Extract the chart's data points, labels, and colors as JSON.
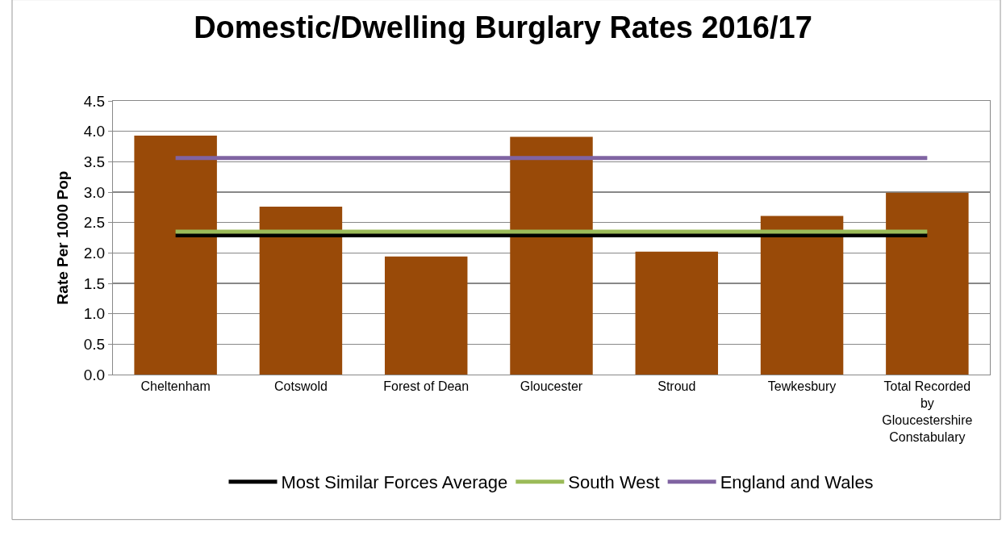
{
  "chart_data": {
    "type": "bar",
    "title": "Domestic/Dwelling Burglary Rates 2016/17",
    "ylabel": "Rate Per 1000 Pop",
    "categories": [
      "Cheltenham",
      "Cotswold",
      "Forest of Dean",
      "Gloucester",
      "Stroud",
      "Tewkesbury",
      "Total Recorded by Gloucestershire Constabulary"
    ],
    "series": [
      {
        "color": "#994a08",
        "values": [
          3.93,
          2.76,
          1.94,
          3.91,
          2.02,
          2.61,
          2.99
        ]
      },
      {
        "type": "line",
        "name": "Most Similar Forces Average",
        "color": "#000000",
        "values": [
          2.29,
          2.29,
          2.29,
          2.29,
          2.29,
          2.29,
          2.29
        ]
      },
      {
        "type": "line",
        "name": "South West",
        "color": "#9bbb59",
        "values": [
          2.35,
          2.35,
          2.35,
          2.35,
          2.35,
          2.35,
          2.35
        ]
      },
      {
        "type": "line",
        "name": "England and Wales",
        "color": "#8064a2",
        "values": [
          3.56,
          3.56,
          3.56,
          3.56,
          3.56,
          3.56,
          3.56
        ]
      }
    ],
    "ylim": [
      0,
      4.5
    ],
    "yticks": [
      {
        "value": 0,
        "label": "0.0"
      },
      {
        "value": 0.5,
        "label": "0.5"
      },
      {
        "value": 1,
        "label": "1.0"
      },
      {
        "value": 1.5,
        "label": "1.5"
      },
      {
        "value": 2,
        "label": "2.0"
      },
      {
        "value": 2.5,
        "label": "2.5"
      },
      {
        "value": 3,
        "label": "3.0"
      },
      {
        "value": 3.5,
        "label": "3.5"
      },
      {
        "value": 4,
        "label": "4.0"
      },
      {
        "value": 4.5,
        "label": "4.5"
      }
    ],
    "grid": "y",
    "legend": "bottom",
    "marker": "none",
    "line_style": "solid"
  }
}
